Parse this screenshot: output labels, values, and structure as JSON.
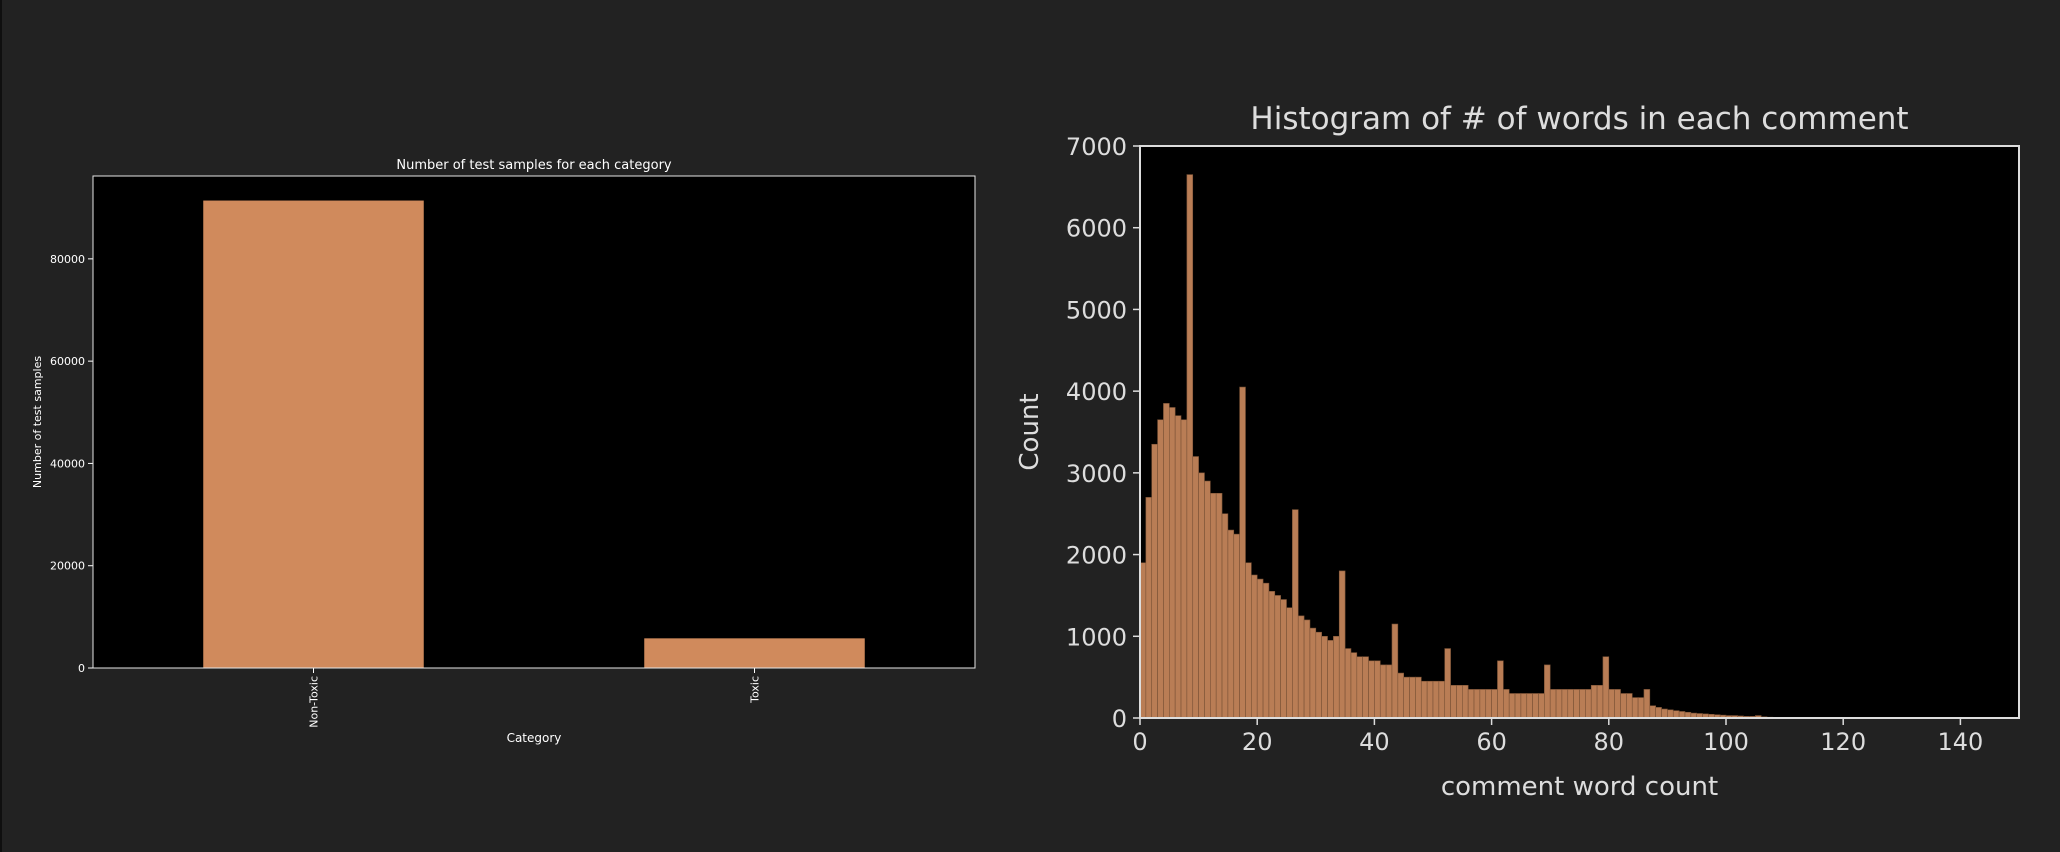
{
  "chart_data": [
    {
      "type": "bar",
      "title": "Number of test samples for each category",
      "xlabel": "Category",
      "ylabel": "Number of test samples",
      "categories": [
        "Non-Toxic",
        "Toxic"
      ],
      "values": [
        91400,
        5800
      ],
      "ylim": [
        0,
        96200
      ],
      "yticks": [
        0,
        20000,
        40000,
        60000,
        80000
      ],
      "bar_color": "#d08a5c",
      "plot_background": "#000000",
      "grid": false,
      "legend": "none"
    },
    {
      "type": "bar",
      "subtype": "histogram",
      "title": "Histogram of # of words in each comment",
      "xlabel": "comment word count",
      "ylabel": "Count",
      "xlim": [
        0,
        150
      ],
      "ylim": [
        0,
        7000
      ],
      "xticks": [
        0,
        20,
        40,
        60,
        80,
        100,
        120,
        140
      ],
      "yticks": [
        0,
        1000,
        2000,
        3000,
        4000,
        5000,
        6000,
        7000
      ],
      "bin_width": 1,
      "bin_start": 0,
      "values": [
        1900,
        2700,
        3350,
        3650,
        3850,
        3800,
        3700,
        3650,
        6650,
        3200,
        3000,
        2900,
        2750,
        2750,
        2500,
        2300,
        2250,
        4050,
        1900,
        1750,
        1700,
        1650,
        1550,
        1500,
        1450,
        1350,
        2550,
        1250,
        1200,
        1100,
        1050,
        1000,
        950,
        1000,
        1800,
        850,
        800,
        750,
        750,
        700,
        700,
        650,
        650,
        1150,
        550,
        500,
        500,
        500,
        450,
        450,
        450,
        450,
        850,
        400,
        400,
        400,
        350,
        350,
        350,
        350,
        350,
        700,
        350,
        300,
        300,
        300,
        300,
        300,
        300,
        650,
        350,
        350,
        350,
        350,
        350,
        350,
        350,
        400,
        400,
        750,
        350,
        350,
        300,
        300,
        250,
        250,
        350,
        150,
        130,
        110,
        100,
        90,
        80,
        70,
        60,
        55,
        50,
        45,
        40,
        35,
        30,
        30,
        25,
        20,
        20,
        30,
        15,
        10,
        8,
        6,
        5,
        4,
        3,
        2,
        2
      ],
      "bar_color": "#b97d55",
      "plot_background": "#000000",
      "grid": false,
      "legend": "none"
    }
  ]
}
